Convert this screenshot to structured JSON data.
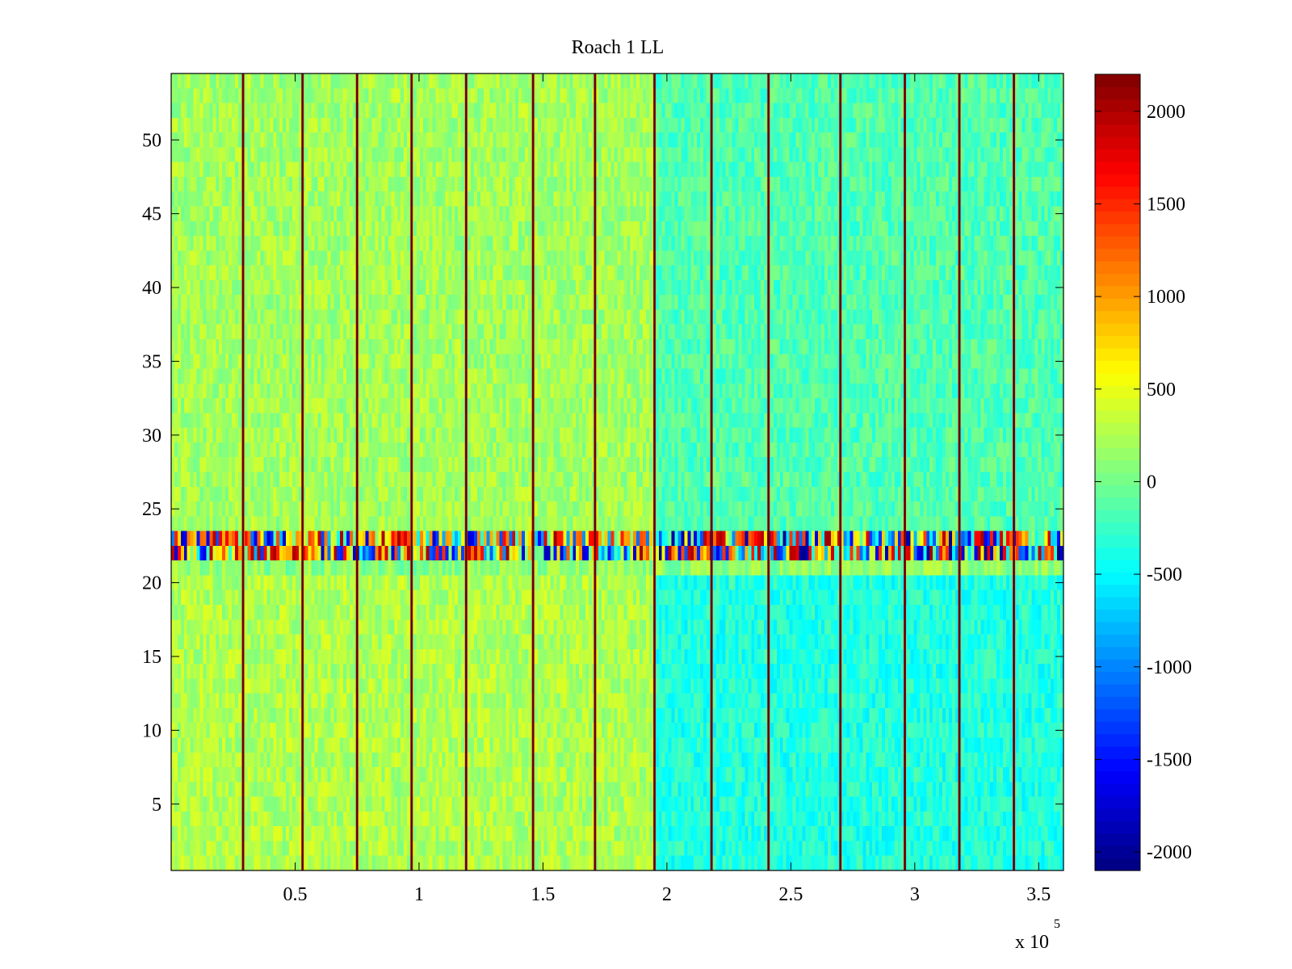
{
  "chart_data": {
    "type": "heatmap",
    "title": "Roach 1 LL",
    "xlabel": "",
    "ylabel": "",
    "x_exponent_label": "x 10",
    "x_exponent_power": "5",
    "xlim": [
      0,
      360000
    ],
    "ylim": [
      0.5,
      54.5
    ],
    "x_ticks": [
      {
        "value": 50000,
        "label": "0.5"
      },
      {
        "value": 100000,
        "label": "1"
      },
      {
        "value": 150000,
        "label": "1.5"
      },
      {
        "value": 200000,
        "label": "2"
      },
      {
        "value": 250000,
        "label": "2.5"
      },
      {
        "value": 300000,
        "label": "3"
      },
      {
        "value": 350000,
        "label": "3.5"
      }
    ],
    "y_ticks": [
      {
        "value": 5,
        "label": "5"
      },
      {
        "value": 10,
        "label": "10"
      },
      {
        "value": 15,
        "label": "15"
      },
      {
        "value": 20,
        "label": "20"
      },
      {
        "value": 25,
        "label": "25"
      },
      {
        "value": 30,
        "label": "30"
      },
      {
        "value": 35,
        "label": "35"
      },
      {
        "value": 40,
        "label": "40"
      },
      {
        "value": 45,
        "label": "45"
      },
      {
        "value": 50,
        "label": "50"
      }
    ],
    "colorbar": {
      "colormap": "jet",
      "range": [
        -2100,
        2200
      ],
      "ticks": [
        {
          "value": 2000,
          "label": "2000"
        },
        {
          "value": 1500,
          "label": "1500"
        },
        {
          "value": 1000,
          "label": "1000"
        },
        {
          "value": 500,
          "label": "500"
        },
        {
          "value": 0,
          "label": "0"
        },
        {
          "value": -500,
          "label": "-500"
        },
        {
          "value": -1000,
          "label": "-1000"
        },
        {
          "value": -1500,
          "label": "-1500"
        },
        {
          "value": -2000,
          "label": "-2000"
        }
      ]
    },
    "rows": 54,
    "row_groups": [
      {
        "y_from": 1,
        "y_to": 20,
        "baseline_early": 250,
        "baseline_late": -350,
        "noise": 220
      },
      {
        "y_from": 21,
        "y_to": 21,
        "baseline_early": 100,
        "baseline_late": 100,
        "noise": 250
      },
      {
        "y_from": 22,
        "y_to": 23,
        "baseline_early": -500,
        "baseline_late": -700,
        "noise": 1400,
        "spiky": true
      },
      {
        "y_from": 24,
        "y_to": 54,
        "baseline_early": 200,
        "baseline_late": -150,
        "noise": 220
      }
    ],
    "level_shift_x": 195000,
    "sync_spikes_x": [
      29000,
      53000,
      75000,
      97000,
      119000,
      146000,
      171000,
      195000,
      218000,
      241000,
      270000,
      296000,
      318000,
      340000
    ],
    "sync_spike_value": 2000
  }
}
